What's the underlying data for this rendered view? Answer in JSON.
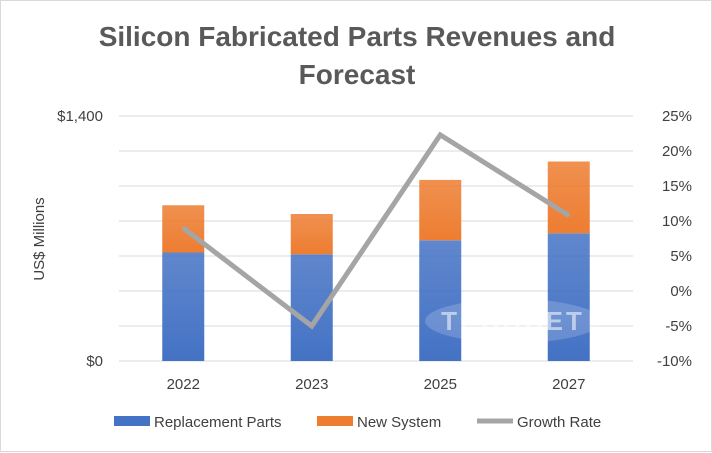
{
  "chart_data": {
    "type": "bar",
    "title_lines": [
      "Silicon Fabricated Parts Revenues and",
      "Forecast"
    ],
    "ylabel": "US$ Millions",
    "categories": [
      "2022",
      "2023",
      "2025",
      "2027"
    ],
    "ylim": [
      0,
      1400
    ],
    "y_ticks": [
      0,
      1400
    ],
    "y_tick_labels": [
      "$0",
      "$1,400"
    ],
    "y2lim": [
      -10,
      25
    ],
    "y2_ticks": [
      -10,
      -5,
      0,
      5,
      10,
      15,
      20,
      25
    ],
    "y2_tick_labels": [
      "-10%",
      "-5%",
      "0%",
      "5%",
      "10%",
      "15%",
      "20%",
      "25%"
    ],
    "grid": true,
    "legend_position": "bottom",
    "series": [
      {
        "name": "Replacement Parts",
        "kind": "bar",
        "stack": "main",
        "axis": "left",
        "color": "#4472c4",
        "values": [
          620,
          610,
          690,
          730
        ]
      },
      {
        "name": "New System",
        "kind": "bar",
        "stack": "main",
        "axis": "left",
        "color": "#ed7d31",
        "values": [
          270,
          230,
          345,
          410
        ]
      },
      {
        "name": "Growth Rate",
        "kind": "line",
        "axis": "right",
        "color": "#a5a5a5",
        "unit": "%",
        "values": [
          9,
          -5,
          22.3,
          10.8
        ]
      }
    ],
    "watermark": "TECHCET"
  }
}
